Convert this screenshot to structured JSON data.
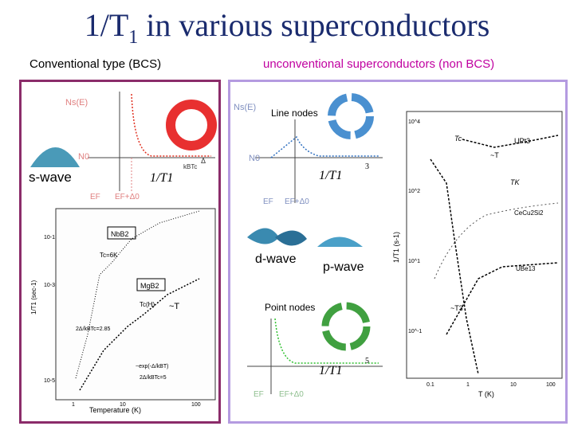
{
  "title": {
    "main": "1/T",
    "sub": "1",
    "rest": " in various superconductors"
  },
  "left_heading": "Conventional type (BCS)",
  "right_heading": "unconventional superconductors (non BCS)",
  "bcs_dos": {
    "ns_label": "Ns(E)",
    "n0_label": "N0",
    "ef_label": "EF",
    "ef_delta_label": "EF+Δ0",
    "delta_label": "Δ",
    "kt_label": "kBTc"
  },
  "swave_label": "s-wave",
  "bcs_formula": "1/T1",
  "nb_plot": {
    "nbb2": "NbB2",
    "tc6k": "Tc=6K",
    "mgb2": "MgB2",
    "tch": "Tc(H)",
    "simT": "~T",
    "gap1": "2Δ/kBTc=2.85",
    "exp_label": "~exp(-Δ/kBT)",
    "gap2": "2Δ/kBTc=5",
    "ylabel": "1/T1 (sec-1)",
    "xlabel": "Temperature (K)",
    "yticks": [
      "10-1",
      "10-3",
      "10-5"
    ],
    "xticks": [
      "1",
      "10",
      "100"
    ]
  },
  "line_nodes_label": "Line nodes",
  "line_formula_power": "3",
  "dwave_label": "d-wave",
  "pwave_label": "p-wave",
  "point_nodes_label": "Point nodes",
  "point_formula_power": "5",
  "heavy_plot": {
    "upt3": "UPt3",
    "cecu2si2": "CeCu2Si2",
    "ube13": "UBe13",
    "simT": "~T",
    "simT3": "~T3",
    "tc": "Tc",
    "tk": "TK",
    "ylabel": "1/T1 (s-1)",
    "xlabel": "T (K)",
    "yticks": [
      "10^4",
      "10^2",
      "10^1",
      "10^-1"
    ],
    "xticks": [
      "0.1",
      "1",
      "10",
      "100"
    ]
  },
  "colors": {
    "title": "#1a2b6e",
    "bcs_curve": "#e03020",
    "line_curve": "#3070c0",
    "point_curve": "#30c030",
    "left_border": "#8b2c6a",
    "right_border": "#b49be0"
  }
}
